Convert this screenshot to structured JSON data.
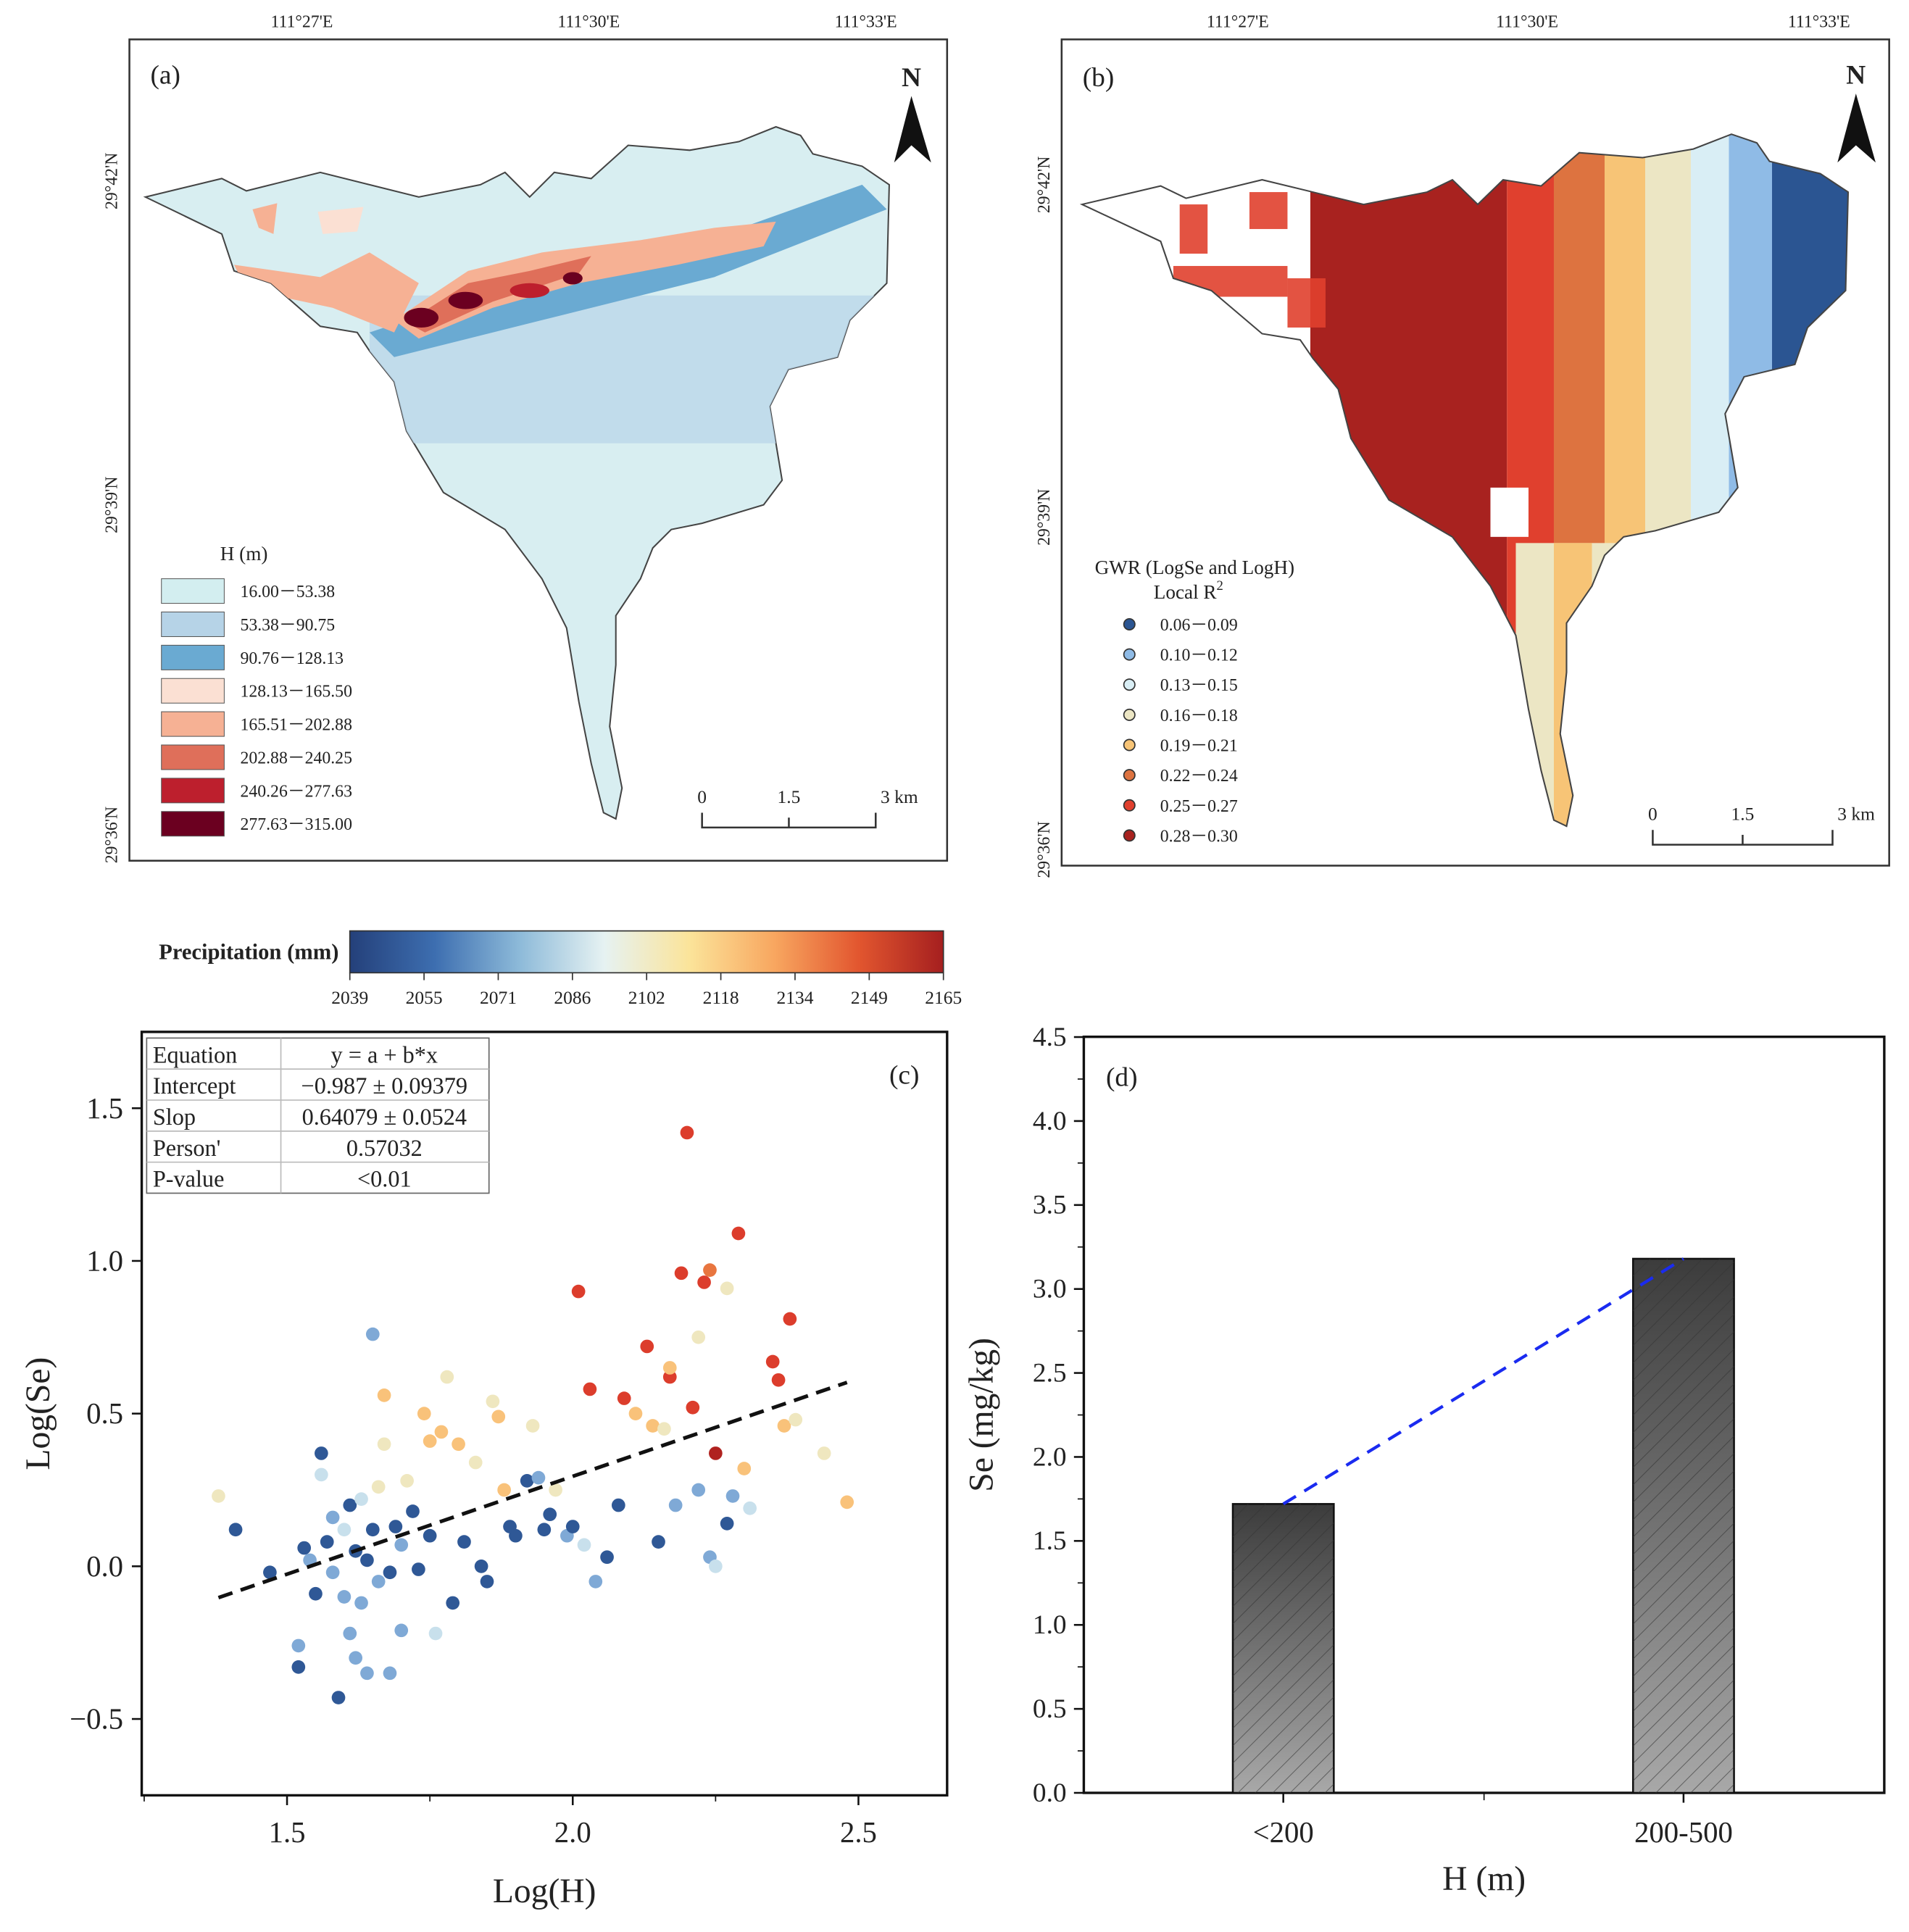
{
  "panel_a": {
    "label": "(a)",
    "lon_ticks": [
      "111°27'E",
      "111°30'E",
      "111°33'E"
    ],
    "lat_ticks": [
      "29°42'N",
      "29°39'N",
      "29°36'N"
    ],
    "north": "N",
    "legend_title": "H (m)",
    "legend": [
      {
        "label": "16.00－53.38",
        "color": "#d3eef0"
      },
      {
        "label": "53.38－90.75",
        "color": "#b6d3e7"
      },
      {
        "label": "90.76－128.13",
        "color": "#6aaad2"
      },
      {
        "label": "128.13－165.50",
        "color": "#fbe0d3"
      },
      {
        "label": "165.51－202.88",
        "color": "#f6b194"
      },
      {
        "label": "202.88－240.25",
        "color": "#df6f5a"
      },
      {
        "label": "240.26－277.63",
        "color": "#bd1f2d"
      },
      {
        "label": "277.63－315.00",
        "color": "#6b0020"
      }
    ],
    "scale": [
      "0",
      "1.5",
      "3 km"
    ]
  },
  "panel_b": {
    "label": "(b)",
    "lon_ticks": [
      "111°27'E",
      "111°30'E",
      "111°33'E"
    ],
    "lat_ticks": [
      "29°42'N",
      "29°39'N",
      "29°36'N"
    ],
    "north": "N",
    "legend_title": "GWR (LogSe and LogH)",
    "legend_subtitle": "Local R",
    "legend_sup": "2",
    "legend": [
      {
        "label": "0.06－0.09",
        "color": "#2b5592"
      },
      {
        "label": "0.10－0.12",
        "color": "#8fbbe6"
      },
      {
        "label": "0.13－0.15",
        "color": "#d9eef5"
      },
      {
        "label": "0.16－0.18",
        "color": "#ece6c4"
      },
      {
        "label": "0.19－0.21",
        "color": "#f7c476"
      },
      {
        "label": "0.22－0.24",
        "color": "#dd7340"
      },
      {
        "label": "0.25－0.27",
        "color": "#e0402e"
      },
      {
        "label": "0.28－0.30",
        "color": "#a8221f"
      }
    ],
    "scale": [
      "0",
      "1.5",
      "3 km"
    ]
  },
  "colorbar": {
    "title": "Precipitation (mm)",
    "ticks": [
      "2039",
      "2055",
      "2071",
      "2086",
      "2102",
      "2118",
      "2134",
      "2149",
      "2165"
    ],
    "colors": [
      "#24407a",
      "#3d6eb0",
      "#8dbad9",
      "#e6f2f2",
      "#fbe49a",
      "#f8a760",
      "#e2562f",
      "#a51f1f"
    ]
  },
  "chart_data": [
    {
      "type": "scatter",
      "panel": "(c)",
      "xlabel": "Log(H)",
      "ylabel": "Log(Se)",
      "xlim": [
        1.25,
        2.66
      ],
      "ylim": [
        -0.75,
        1.75
      ],
      "xticks": [
        "1.5",
        "2.0",
        "2.5"
      ],
      "xtick_values": [
        1.5,
        2.0,
        2.5
      ],
      "yticks": [
        "−0.5",
        "0.0",
        "0.5",
        "1.0",
        "1.5"
      ],
      "ytick_values": [
        -0.5,
        0,
        0.5,
        1.0,
        1.5
      ],
      "fit": {
        "intercept": -0.987,
        "slope": 0.64079,
        "x_range": [
          1.38,
          2.48
        ]
      },
      "stats_table": [
        [
          "Equation",
          "y = a + b*x"
        ],
        [
          "Intercept",
          "−0.987 ± 0.09379"
        ],
        [
          "Slop",
          "0.64079 ± 0.0524"
        ],
        [
          "Person'",
          "0.57032"
        ],
        [
          "P-value",
          "<0.01"
        ]
      ],
      "point_colors": [
        "#2f5896",
        "#7fa9d6",
        "#c8e0ec",
        "#efe7bf",
        "#f9c27a",
        "#e8753f",
        "#dc3d2c",
        "#b0221f"
      ],
      "points": [
        [
          1.38,
          0.23,
          3
        ],
        [
          1.41,
          0.12,
          0
        ],
        [
          1.47,
          -0.02,
          0
        ],
        [
          1.52,
          -0.26,
          1
        ],
        [
          1.52,
          -0.33,
          0
        ],
        [
          1.53,
          0.06,
          0
        ],
        [
          1.54,
          0.02,
          1
        ],
        [
          1.55,
          -0.09,
          0
        ],
        [
          1.56,
          0.37,
          0
        ],
        [
          1.56,
          0.3,
          2
        ],
        [
          1.57,
          0.08,
          0
        ],
        [
          1.58,
          0.16,
          1
        ],
        [
          1.58,
          -0.02,
          1
        ],
        [
          1.59,
          -0.43,
          0
        ],
        [
          1.6,
          0.12,
          2
        ],
        [
          1.6,
          -0.1,
          1
        ],
        [
          1.61,
          0.2,
          0
        ],
        [
          1.61,
          -0.22,
          1
        ],
        [
          1.62,
          0.05,
          0
        ],
        [
          1.62,
          -0.3,
          1
        ],
        [
          1.63,
          0.22,
          2
        ],
        [
          1.63,
          -0.12,
          1
        ],
        [
          1.64,
          0.02,
          0
        ],
        [
          1.64,
          -0.35,
          1
        ],
        [
          1.65,
          0.76,
          1
        ],
        [
          1.65,
          0.12,
          0
        ],
        [
          1.66,
          -0.05,
          1
        ],
        [
          1.66,
          0.26,
          3
        ],
        [
          1.67,
          0.4,
          3
        ],
        [
          1.67,
          0.56,
          4
        ],
        [
          1.68,
          -0.02,
          0
        ],
        [
          1.68,
          -0.35,
          1
        ],
        [
          1.69,
          0.13,
          0
        ],
        [
          1.7,
          0.07,
          1
        ],
        [
          1.7,
          -0.21,
          1
        ],
        [
          1.71,
          0.28,
          3
        ],
        [
          1.72,
          0.18,
          0
        ],
        [
          1.73,
          -0.01,
          0
        ],
        [
          1.74,
          0.5,
          4
        ],
        [
          1.75,
          0.41,
          4
        ],
        [
          1.75,
          0.1,
          0
        ],
        [
          1.76,
          -0.22,
          2
        ],
        [
          1.77,
          0.44,
          4
        ],
        [
          1.78,
          0.62,
          3
        ],
        [
          1.79,
          -0.12,
          0
        ],
        [
          1.8,
          0.4,
          4
        ],
        [
          1.81,
          0.08,
          0
        ],
        [
          1.83,
          0.34,
          3
        ],
        [
          1.84,
          0.0,
          0
        ],
        [
          1.85,
          -0.05,
          0
        ],
        [
          1.86,
          0.54,
          3
        ],
        [
          1.87,
          0.49,
          4
        ],
        [
          1.88,
          0.25,
          4
        ],
        [
          1.89,
          0.13,
          0
        ],
        [
          1.9,
          0.1,
          0
        ],
        [
          1.92,
          0.28,
          0
        ],
        [
          1.93,
          0.46,
          3
        ],
        [
          1.94,
          0.29,
          1
        ],
        [
          1.95,
          0.12,
          0
        ],
        [
          1.96,
          0.17,
          0
        ],
        [
          1.97,
          0.25,
          3
        ],
        [
          1.99,
          0.1,
          1
        ],
        [
          2.0,
          0.13,
          0
        ],
        [
          2.01,
          0.9,
          6
        ],
        [
          2.02,
          0.07,
          2
        ],
        [
          2.03,
          0.58,
          6
        ],
        [
          2.04,
          -0.05,
          1
        ],
        [
          2.06,
          0.03,
          0
        ],
        [
          2.08,
          0.2,
          0
        ],
        [
          2.09,
          0.55,
          6
        ],
        [
          2.11,
          0.5,
          4
        ],
        [
          2.13,
          0.72,
          6
        ],
        [
          2.14,
          0.46,
          4
        ],
        [
          2.15,
          0.08,
          0
        ],
        [
          2.16,
          0.45,
          3
        ],
        [
          2.17,
          0.62,
          6
        ],
        [
          2.17,
          0.65,
          4
        ],
        [
          2.18,
          0.2,
          1
        ],
        [
          2.19,
          0.96,
          6
        ],
        [
          2.2,
          1.42,
          6
        ],
        [
          2.21,
          0.52,
          6
        ],
        [
          2.22,
          0.25,
          1
        ],
        [
          2.22,
          0.75,
          3
        ],
        [
          2.23,
          0.93,
          6
        ],
        [
          2.24,
          0.03,
          1
        ],
        [
          2.24,
          0.97,
          5
        ],
        [
          2.25,
          0.37,
          7
        ],
        [
          2.25,
          0.0,
          2
        ],
        [
          2.27,
          0.14,
          0
        ],
        [
          2.27,
          0.91,
          3
        ],
        [
          2.28,
          0.23,
          1
        ],
        [
          2.29,
          1.09,
          6
        ],
        [
          2.3,
          0.32,
          4
        ],
        [
          2.31,
          0.19,
          2
        ],
        [
          2.35,
          0.67,
          6
        ],
        [
          2.36,
          0.61,
          6
        ],
        [
          2.37,
          0.46,
          4
        ],
        [
          2.38,
          0.81,
          6
        ],
        [
          2.39,
          0.48,
          3
        ],
        [
          2.44,
          0.37,
          3
        ],
        [
          2.48,
          0.21,
          4
        ]
      ]
    },
    {
      "type": "bar",
      "panel": "(d)",
      "categories": [
        "<200",
        "200-500"
      ],
      "values": [
        1.72,
        3.18
      ],
      "xlabel": "H (m)",
      "ylabel": "Se (mg/kg)",
      "ylim": [
        0,
        4.5
      ],
      "yticks": [
        "0.0",
        "0.5",
        "1.0",
        "1.5",
        "2.0",
        "2.5",
        "3.0",
        "3.5",
        "4.0",
        "4.5"
      ],
      "trend_line_color": "#1a2bf0"
    }
  ]
}
